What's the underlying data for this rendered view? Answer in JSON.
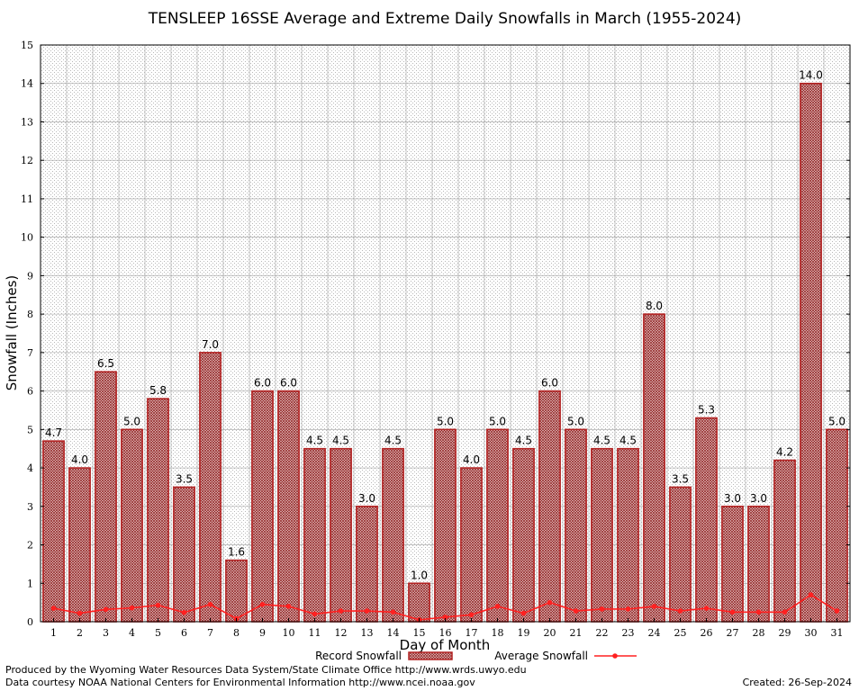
{
  "chart_data": {
    "type": "bar",
    "title": "TENSLEEP 16SSE Average and Extreme Daily Snowfalls in March (1955-2024)",
    "xlabel": "Day of Month",
    "ylabel": "Snowfall (Inches)",
    "ylim": [
      0,
      15
    ],
    "yticks": [
      "0",
      "1",
      "2",
      "3",
      "4",
      "5",
      "6",
      "7",
      "8",
      "9",
      "10",
      "11",
      "12",
      "13",
      "14",
      "15"
    ],
    "grid": true,
    "legend_position": "bottom",
    "categories": [
      "1",
      "2",
      "3",
      "4",
      "5",
      "6",
      "7",
      "8",
      "9",
      "10",
      "11",
      "12",
      "13",
      "14",
      "15",
      "16",
      "17",
      "18",
      "19",
      "20",
      "21",
      "22",
      "23",
      "24",
      "25",
      "26",
      "27",
      "28",
      "29",
      "30",
      "31"
    ],
    "series": [
      {
        "name": "Record Snowfall",
        "kind": "bar",
        "color": "#b22222",
        "values": [
          4.7,
          4.0,
          6.5,
          5.0,
          5.8,
          3.5,
          7.0,
          1.6,
          6.0,
          6.0,
          4.5,
          4.5,
          3.0,
          4.5,
          1.0,
          5.0,
          4.0,
          5.0,
          4.5,
          6.0,
          5.0,
          4.5,
          4.5,
          8.0,
          3.5,
          5.3,
          3.0,
          3.0,
          4.2,
          14.0,
          5.0
        ],
        "labels": [
          "4.7",
          "4.0",
          "6.5",
          "5.0",
          "5.8",
          "3.5",
          "7.0",
          "1.6",
          "6.0",
          "6.0",
          "4.5",
          "4.5",
          "3.0",
          "4.5",
          "1.0",
          "5.0",
          "4.0",
          "5.0",
          "4.5",
          "6.0",
          "5.0",
          "4.5",
          "4.5",
          "8.0",
          "3.5",
          "5.3",
          "3.0",
          "3.0",
          "4.2",
          "14.0",
          "5.0"
        ]
      },
      {
        "name": "Average Snowfall",
        "kind": "line",
        "color": "#ff2020",
        "values": [
          0.35,
          0.22,
          0.32,
          0.36,
          0.43,
          0.24,
          0.45,
          0.08,
          0.45,
          0.4,
          0.2,
          0.28,
          0.28,
          0.25,
          0.05,
          0.12,
          0.18,
          0.4,
          0.22,
          0.5,
          0.28,
          0.33,
          0.33,
          0.4,
          0.28,
          0.35,
          0.25,
          0.25,
          0.25,
          0.7,
          0.28
        ]
      }
    ]
  },
  "footer": {
    "producer": "Produced by the Wyoming Water Resources Data System/State Climate Office http://www.wrds.uwyo.edu",
    "courtesy": "Data courtesy NOAA National Centers for Environmental Information http://www.ncei.noaa.gov",
    "created": "Created:  26-Sep-2024"
  }
}
